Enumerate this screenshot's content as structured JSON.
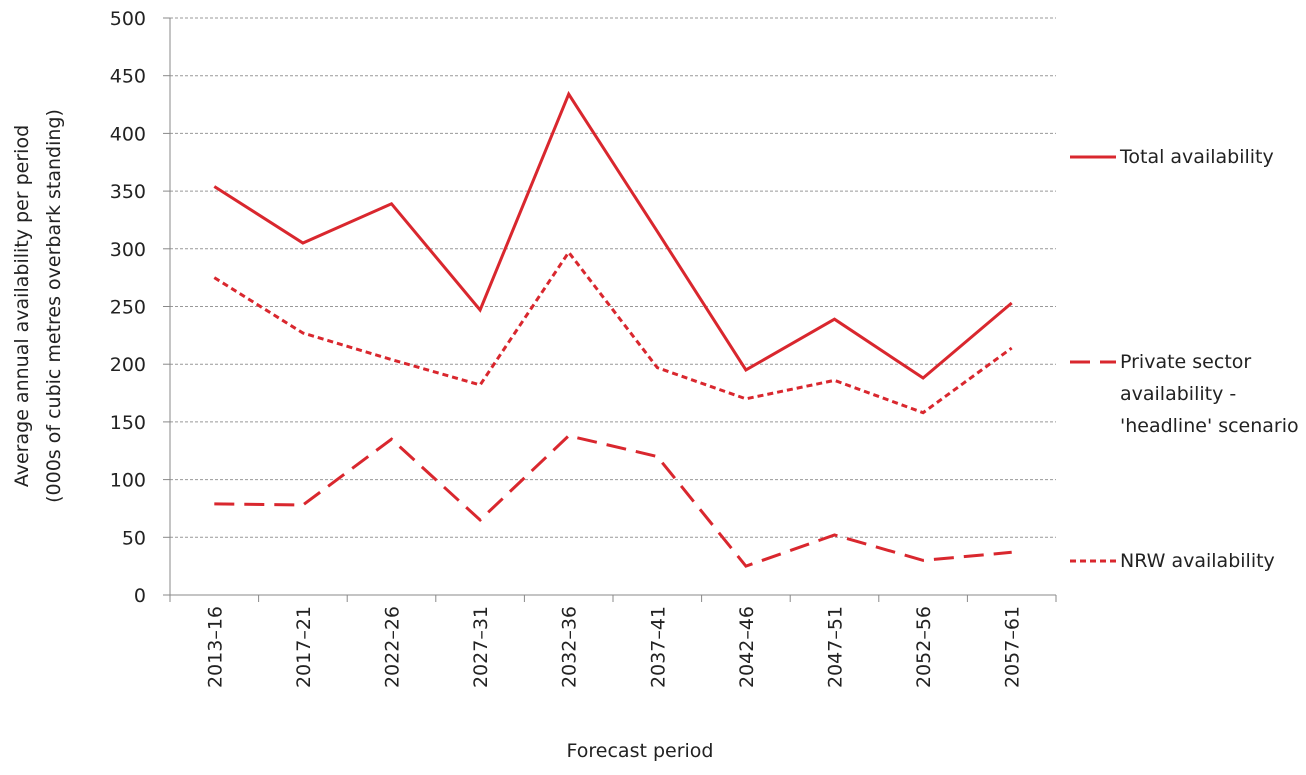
{
  "chart_data": {
    "type": "line",
    "xlabel": "Forecast period",
    "ylabel": [
      "Average annual availability per period",
      "(000s of cubic metres overbark standing)"
    ],
    "categories": [
      "2013–16",
      "2017–21",
      "2022–26",
      "2027–31",
      "2032–36",
      "2037–41",
      "2042–46",
      "2047–51",
      "2052–56",
      "2057–61"
    ],
    "series": [
      {
        "name": "Total availability",
        "color": "#d9272e",
        "line_style": "solid",
        "values": [
          354,
          305,
          339,
          247,
          434,
          315,
          195,
          239,
          188,
          253
        ]
      },
      {
        "name": "Private sector availability - 'headline' scenario",
        "color": "#d9272e",
        "line_style": "dashed",
        "values": [
          79,
          78,
          135,
          65,
          138,
          120,
          25,
          52,
          30,
          37
        ]
      },
      {
        "name": "NRW availability",
        "color": "#d9272e",
        "line_style": "dotted",
        "values": [
          275,
          227,
          204,
          182,
          297,
          197,
          170,
          186,
          158,
          214
        ]
      }
    ],
    "ylim": [
      0,
      500
    ],
    "yticks": [
      0,
      50,
      100,
      150,
      200,
      250,
      300,
      350,
      400,
      450,
      500
    ],
    "grid": true,
    "legend": "right"
  }
}
